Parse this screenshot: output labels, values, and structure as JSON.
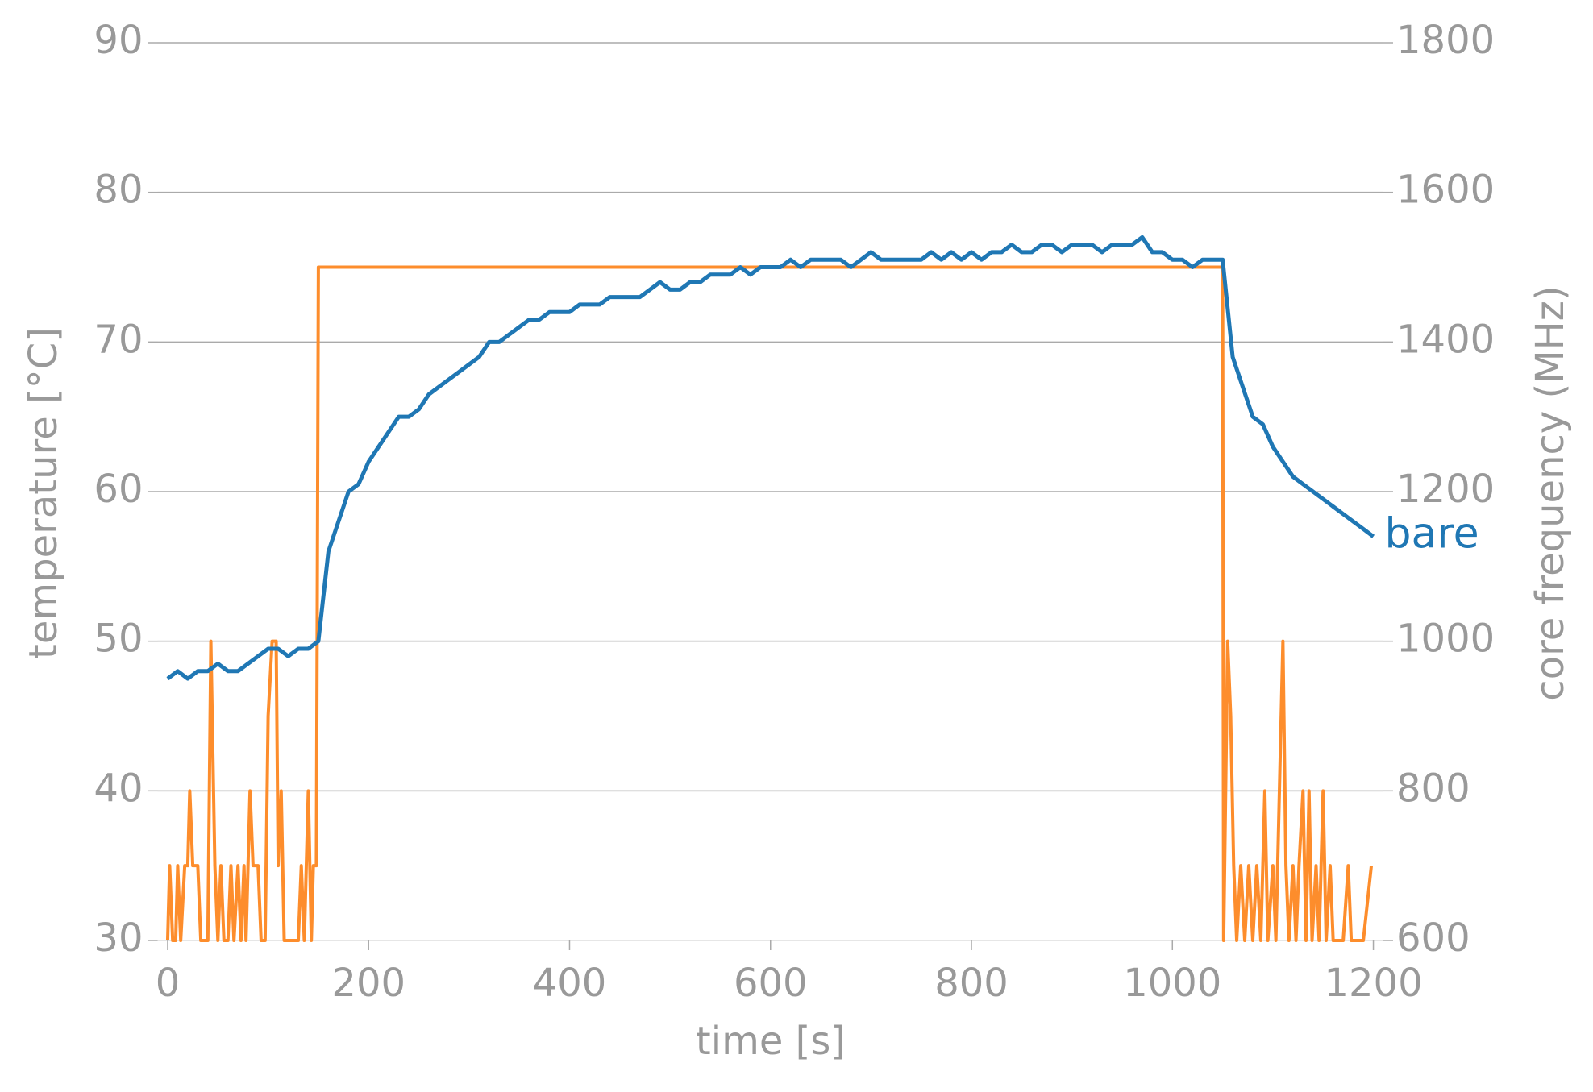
{
  "chart_data": {
    "type": "line",
    "xlabel": "time [s]",
    "ylabel": "temperature [°C]",
    "y2label": "core frequency (MHz)",
    "xlim": [
      -10,
      1210
    ],
    "xticks": [
      0,
      200,
      400,
      600,
      800,
      1000,
      1200
    ],
    "ylim": [
      30,
      90
    ],
    "yticks": [
      30,
      40,
      50,
      60,
      70,
      80,
      90
    ],
    "y2lim": [
      600,
      1800
    ],
    "y2ticks": [
      600,
      800,
      1000,
      1200,
      1400,
      1600,
      1800
    ],
    "grid": true,
    "series": [
      {
        "name": "bare",
        "color": "#1f77b4",
        "x": [
          0,
          10,
          20,
          30,
          40,
          50,
          60,
          70,
          80,
          90,
          100,
          110,
          120,
          130,
          140,
          150,
          160,
          170,
          180,
          190,
          200,
          210,
          220,
          230,
          240,
          250,
          260,
          270,
          280,
          290,
          300,
          310,
          320,
          330,
          340,
          350,
          360,
          370,
          380,
          390,
          400,
          410,
          420,
          430,
          440,
          450,
          460,
          470,
          480,
          490,
          500,
          510,
          520,
          530,
          540,
          550,
          560,
          570,
          580,
          590,
          600,
          610,
          620,
          630,
          640,
          650,
          660,
          670,
          680,
          690,
          700,
          710,
          720,
          730,
          740,
          750,
          760,
          770,
          780,
          790,
          800,
          810,
          820,
          830,
          840,
          850,
          860,
          870,
          880,
          890,
          900,
          910,
          920,
          930,
          940,
          950,
          960,
          970,
          980,
          990,
          1000,
          1010,
          1020,
          1030,
          1040,
          1050,
          1060,
          1070,
          1080,
          1090,
          1100,
          1110,
          1120,
          1130,
          1140,
          1150,
          1160,
          1170,
          1180,
          1190,
          1200
        ],
        "values": [
          47.5,
          48,
          47.5,
          48,
          48,
          48.5,
          48,
          48,
          48.5,
          49,
          49.5,
          49.5,
          49,
          49.5,
          49.5,
          50,
          56,
          58,
          60,
          60.5,
          62,
          63,
          64,
          65,
          65,
          65.5,
          66.5,
          67,
          67.5,
          68,
          68.5,
          69,
          70,
          70,
          70.5,
          71,
          71.5,
          71.5,
          72,
          72,
          72,
          72.5,
          72.5,
          72.5,
          73,
          73,
          73,
          73,
          73.5,
          74,
          73.5,
          73.5,
          74,
          74,
          74.5,
          74.5,
          74.5,
          75,
          74.5,
          75,
          75,
          75,
          75.5,
          75,
          75.5,
          75.5,
          75.5,
          75.5,
          75,
          75.5,
          76,
          75.5,
          75.5,
          75.5,
          75.5,
          75.5,
          76,
          75.5,
          76,
          75.5,
          76,
          75.5,
          76,
          76,
          76.5,
          76,
          76,
          76.5,
          76.5,
          76,
          76.5,
          76.5,
          76.5,
          76,
          76.5,
          76.5,
          76.5,
          77,
          76,
          76,
          75.5,
          75.5,
          75,
          75.5,
          75.5,
          75.5,
          69,
          67,
          65,
          64.5,
          63,
          62,
          61,
          60.5,
          60,
          59.5,
          59,
          58.5,
          58,
          57.5,
          57
        ]
      },
      {
        "color": "#fd8d2c",
        "axis": "y2",
        "x": [
          0,
          2,
          5,
          8,
          10,
          13,
          17,
          20,
          22,
          25,
          30,
          33,
          40,
          43,
          47,
          50,
          53,
          56,
          60,
          63,
          66,
          70,
          73,
          76,
          78,
          82,
          85,
          90,
          93,
          97,
          100,
          104,
          108,
          110,
          113,
          116,
          125,
          130,
          133,
          136,
          140,
          143,
          145,
          148,
          150,
          1050,
          1051,
          1055,
          1058,
          1061,
          1064,
          1068,
          1072,
          1076,
          1080,
          1084,
          1088,
          1092,
          1095,
          1100,
          1103,
          1110,
          1113,
          1116,
          1120,
          1123,
          1126,
          1130,
          1133,
          1136,
          1139,
          1143,
          1146,
          1150,
          1153,
          1157,
          1160,
          1170,
          1175,
          1178,
          1185,
          1190,
          1198
        ],
        "values": [
          600,
          700,
          600,
          600,
          700,
          600,
          700,
          700,
          800,
          700,
          700,
          600,
          600,
          1000,
          700,
          600,
          700,
          600,
          600,
          700,
          600,
          700,
          600,
          700,
          600,
          800,
          700,
          700,
          600,
          600,
          900,
          1000,
          1000,
          700,
          800,
          600,
          600,
          600,
          700,
          600,
          800,
          600,
          700,
          700,
          1500,
          1500,
          600,
          1000,
          900,
          700,
          600,
          700,
          600,
          700,
          600,
          700,
          600,
          800,
          600,
          700,
          600,
          1000,
          700,
          600,
          700,
          600,
          700,
          800,
          600,
          800,
          600,
          700,
          600,
          800,
          600,
          700,
          600,
          600,
          700,
          600,
          600,
          600,
          700
        ]
      }
    ]
  }
}
